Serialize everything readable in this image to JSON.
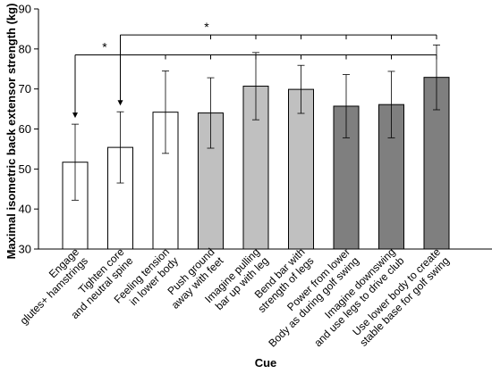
{
  "chart_data": {
    "type": "bar",
    "title": "",
    "xlabel": "Cue",
    "ylabel": "Maximal isometric back extensor strength  (kg)",
    "ylim": [
      30,
      90
    ],
    "yticks": [
      30,
      40,
      50,
      60,
      70,
      80,
      90
    ],
    "grid": false,
    "categories": [
      [
        "Engage",
        "glutes+ hamstrings"
      ],
      [
        "Tighten core",
        "and neutral spine"
      ],
      [
        "Feeling tension",
        "in lower body"
      ],
      [
        "Push ground",
        "away with feet"
      ],
      [
        "Imagine pulling",
        "bar up with leg"
      ],
      [
        "Bend bar with",
        "strength of legs"
      ],
      [
        "Power from lower",
        "Body as during golf swing"
      ],
      [
        "Imagine downswing",
        "and use legs to drive club"
      ],
      [
        "Use lower body to create",
        "stable base for golf swing"
      ]
    ],
    "values": [
      51.7,
      55.4,
      64.2,
      64.0,
      70.7,
      69.9,
      65.7,
      66.1,
      72.9
    ],
    "errors": [
      9.5,
      8.9,
      10.3,
      8.8,
      8.4,
      6.0,
      7.9,
      8.3,
      8.1
    ],
    "bar_fills": [
      "#ffffff",
      "#ffffff",
      "#ffffff",
      "#c0c0c0",
      "#c0c0c0",
      "#c0c0c0",
      "#7f7f7f",
      "#7f7f7f",
      "#7f7f7f"
    ],
    "significance": [
      {
        "label": "*",
        "from": 0,
        "to": [
          1,
          2,
          3,
          4,
          5,
          6,
          7,
          8
        ],
        "level": 78.5
      },
      {
        "label": "*",
        "from": 1,
        "to": [
          3,
          4,
          5,
          6,
          7,
          8
        ],
        "level": 83.5
      }
    ]
  }
}
